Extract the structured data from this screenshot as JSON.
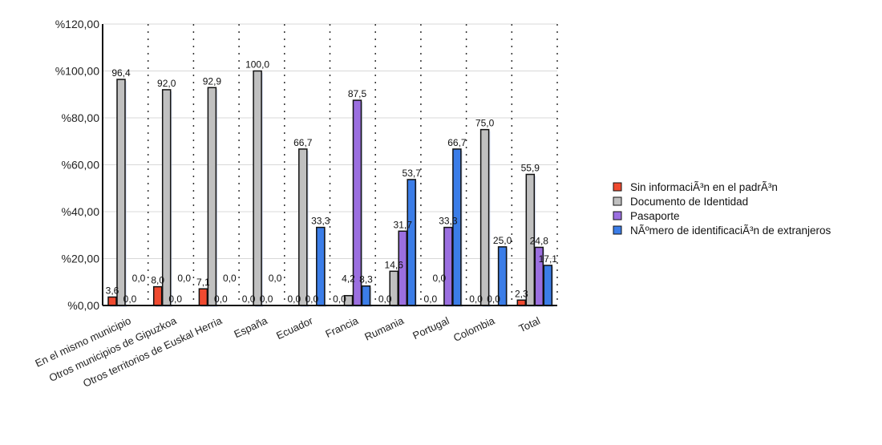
{
  "chart_data": {
    "type": "bar",
    "title": "",
    "xlabel": "",
    "ylabel": "",
    "ylim": [
      0,
      120
    ],
    "yticks": [
      "%0,00",
      "%20,00",
      "%40,00",
      "%60,00",
      "%80,00",
      "%100,00",
      "%120,00"
    ],
    "grid": true,
    "legend_position": "right",
    "categories": [
      "En el mismo municipio",
      "Otros municipios de Gipuzkoa",
      "Otros territorios de Euskal Herria",
      "España",
      "Ecuador",
      "Francia",
      "Rumania",
      "Portugal",
      "Colombia",
      "Total"
    ],
    "series": [
      {
        "name": "Sin informaciÃ³n en el padrÃ³n",
        "color": "#f04a30",
        "values": [
          3.6,
          8.0,
          7.1,
          0.0,
          0.0,
          0.0,
          0.0,
          0.0,
          0.0,
          2.3
        ]
      },
      {
        "name": "Documento de Identidad",
        "color": "#c0c0c0",
        "values": [
          96.4,
          92.0,
          92.9,
          100.0,
          66.7,
          4.2,
          14.6,
          0.0,
          75.0,
          55.9
        ]
      },
      {
        "name": "Pasaporte",
        "color": "#9b6fe0",
        "values": [
          0.0,
          0.0,
          0.0,
          0.0,
          0.0,
          87.5,
          31.7,
          33.3,
          0.0,
          24.8
        ]
      },
      {
        "name": "NÃºmero de identificaciÃ³n de extranjeros",
        "color": "#3b7de8",
        "values": [
          0.0,
          0.0,
          0.0,
          0.0,
          33.3,
          8.3,
          53.7,
          66.7,
          25.0,
          17.1
        ]
      }
    ]
  }
}
